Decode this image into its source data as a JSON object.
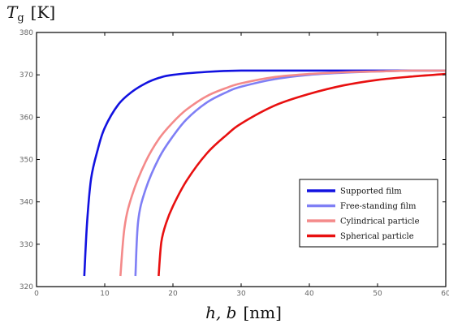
{
  "chart_data": {
    "type": "line",
    "ylabel": "T_g [K]",
    "ylabel_main": "T",
    "ylabel_sub": "g",
    "ylabel_unit": "[K]",
    "xlabel": "h, b [nm]",
    "xlabel_vars": "h, b",
    "xlabel_unit": "[nm]",
    "xlim": [
      0,
      60
    ],
    "ylim": [
      320,
      380
    ],
    "xticks": [
      0,
      10,
      20,
      30,
      40,
      50,
      60
    ],
    "yticks": [
      320,
      330,
      340,
      350,
      360,
      370,
      380
    ],
    "grid": false,
    "legend_position": "lower-right",
    "series": [
      {
        "name": "Supported  film",
        "color": "#1212e0",
        "x": [
          7.0,
          7.4,
          8.0,
          9.0,
          10.0,
          12.0,
          14.0,
          16.0,
          18.0,
          20.0,
          25.0,
          30.0,
          40.0,
          50.0,
          60.0
        ],
        "y": [
          322.5,
          335.0,
          345.5,
          352.5,
          357.5,
          363.0,
          366.0,
          368.0,
          369.3,
          370.0,
          370.7,
          371.0,
          371.0,
          371.0,
          371.0
        ]
      },
      {
        "name": "Free-standing  film",
        "color": "#7f7ff5",
        "x": [
          14.5,
          14.9,
          16.0,
          18.0,
          20.0,
          22.0,
          25.0,
          28.0,
          30.0,
          35.0,
          40.0,
          45.0,
          50.0,
          55.0,
          60.0
        ],
        "y": [
          322.5,
          335.5,
          343.0,
          350.5,
          355.5,
          359.5,
          363.5,
          366.0,
          367.2,
          369.0,
          370.0,
          370.5,
          370.8,
          371.0,
          371.0
        ]
      },
      {
        "name": "Cylindrical particle",
        "color": "#f48a8a",
        "x": [
          12.3,
          12.9,
          14.0,
          16.0,
          18.0,
          20.0,
          22.0,
          25.0,
          28.0,
          30.0,
          35.0,
          40.0,
          45.0,
          50.0,
          55.0,
          60.0
        ],
        "y": [
          322.5,
          334.0,
          341.5,
          349.5,
          355.0,
          358.8,
          361.8,
          365.0,
          367.0,
          368.0,
          369.5,
          370.2,
          370.6,
          370.8,
          371.0,
          371.0
        ]
      },
      {
        "name": "Spherical particle",
        "color": "#e81010",
        "x": [
          17.9,
          18.3,
          19.0,
          20.0,
          22.0,
          25.0,
          28.0,
          30.0,
          35.0,
          40.0,
          45.0,
          50.0,
          55.0,
          60.0
        ],
        "y": [
          322.5,
          330.5,
          335.0,
          339.0,
          345.0,
          351.5,
          356.0,
          358.5,
          362.8,
          365.5,
          367.5,
          368.8,
          369.6,
          370.2
        ]
      }
    ]
  }
}
